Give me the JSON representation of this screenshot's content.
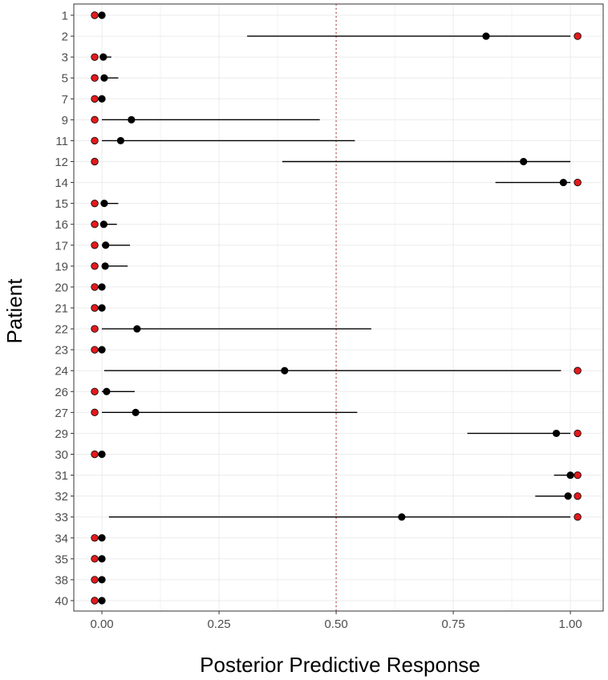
{
  "chart_data": {
    "type": "scatter",
    "subtype": "forest-plot",
    "xlabel": "Posterior Predictive Response",
    "ylabel": "Patient",
    "xlim": [
      -0.06,
      1.07
    ],
    "x_ticks": [
      0.0,
      0.25,
      0.5,
      0.75,
      1.0
    ],
    "x_tick_labels": [
      "0.00",
      "0.25",
      "0.50",
      "0.75",
      "1.00"
    ],
    "reference_line": {
      "x": 0.5,
      "style": "dotted",
      "color": "#c0504d"
    },
    "grid": true,
    "colors": {
      "estimate": "#000000",
      "observed": "#e31a1c",
      "interval": "#000000"
    },
    "categories": [
      "1",
      "2",
      "3",
      "5",
      "7",
      "9",
      "11",
      "12",
      "14",
      "15",
      "16",
      "17",
      "19",
      "20",
      "21",
      "22",
      "23",
      "24",
      "26",
      "27",
      "29",
      "30",
      "31",
      "32",
      "33",
      "34",
      "35",
      "38",
      "40"
    ],
    "estimate": [
      0.0,
      0.82,
      0.003,
      0.005,
      0.0,
      0.063,
      0.04,
      0.9,
      0.985,
      0.005,
      0.004,
      0.008,
      0.007,
      0.0,
      0.0,
      0.075,
      0.0,
      0.39,
      0.01,
      0.072,
      0.97,
      0.0,
      1.0,
      0.995,
      0.64,
      0.0,
      0.0,
      0.0,
      0.0
    ],
    "lower": [
      0.0,
      0.31,
      0.0,
      0.0,
      0.0,
      0.0,
      0.0,
      0.385,
      0.84,
      0.0,
      0.0,
      0.0,
      0.0,
      0.0,
      0.0,
      0.0,
      0.0,
      0.005,
      0.0,
      0.0,
      0.78,
      0.0,
      0.965,
      0.925,
      0.015,
      0.0,
      0.0,
      0.0,
      0.0
    ],
    "upper": [
      0.0,
      1.0,
      0.02,
      0.035,
      0.0,
      0.465,
      0.54,
      1.0,
      1.0,
      0.035,
      0.032,
      0.06,
      0.055,
      0.0,
      0.0,
      0.575,
      0.0,
      0.98,
      0.07,
      0.545,
      1.0,
      0.0,
      1.0,
      1.0,
      1.0,
      0.0,
      0.0,
      0.0,
      0.0
    ],
    "observed": [
      0,
      1,
      0,
      0,
      0,
      0,
      0,
      0,
      1,
      0,
      0,
      0,
      0,
      0,
      0,
      0,
      0,
      1,
      0,
      0,
      1,
      0,
      1,
      1,
      1,
      0,
      0,
      0,
      0
    ],
    "observed_offset_note": ""
  }
}
